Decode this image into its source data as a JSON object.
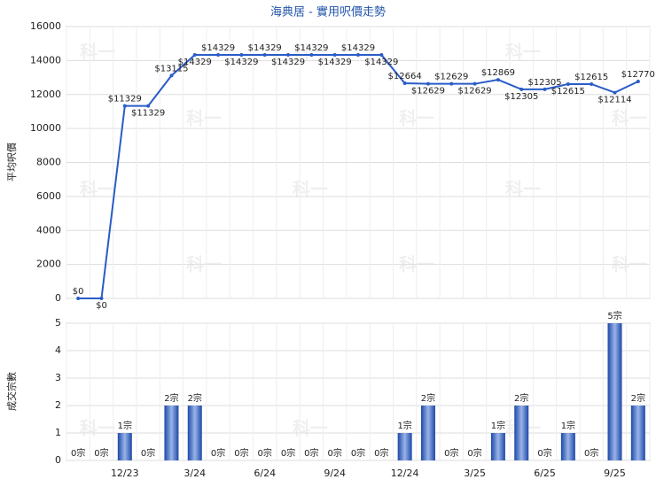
{
  "chart_data": [
    {
      "type": "line",
      "title": "海典居 - 實用呎價走勢",
      "ylabel": "平均呎價",
      "watermark": "科一",
      "color": "#2a5cc8",
      "values": [
        0,
        0,
        11329,
        11329,
        13115,
        14329,
        14329,
        14329,
        14329,
        14329,
        14329,
        14329,
        14329,
        14329,
        12664,
        12629,
        12629,
        12629,
        12869,
        12305,
        12305,
        12615,
        12615,
        12114,
        12770
      ],
      "value_labels": [
        "$0",
        "$0",
        "$11329",
        "$11329",
        "$13115",
        "$14329",
        "$14329",
        "$14329",
        "$14329",
        "$14329",
        "$14329",
        "$14329",
        "$14329",
        "$14329",
        "$12664",
        "$12629",
        "$12629",
        "$12629",
        "$12869",
        "$12305",
        "$12305",
        "$12615",
        "$12615",
        "$12114",
        "$12770"
      ],
      "ylim": [
        0,
        16000
      ],
      "yticks": [
        0,
        2000,
        4000,
        6000,
        8000,
        10000,
        12000,
        14000,
        16000
      ],
      "grid": true
    },
    {
      "type": "bar",
      "ylabel": "成交宗數",
      "color": "#2b5fc4",
      "categories": [
        null,
        null,
        "12/23",
        null,
        null,
        "3/24",
        null,
        null,
        "6/24",
        null,
        null,
        "9/24",
        null,
        null,
        "12/24",
        null,
        null,
        "3/25",
        null,
        null,
        "6/25",
        null,
        null,
        "9/25",
        null
      ],
      "values": [
        0,
        0,
        1,
        0,
        2,
        2,
        0,
        0,
        0,
        0,
        0,
        0,
        0,
        0,
        1,
        2,
        0,
        0,
        1,
        2,
        0,
        1,
        0,
        5,
        2
      ],
      "value_labels": [
        "0宗",
        "0宗",
        "1宗",
        "0宗",
        "2宗",
        "2宗",
        "0宗",
        "0宗",
        "0宗",
        "0宗",
        "0宗",
        "0宗",
        "0宗",
        "0宗",
        "1宗",
        "2宗",
        "0宗",
        "0宗",
        "1宗",
        "2宗",
        "0宗",
        "1宗",
        "0宗",
        "5宗",
        "2宗"
      ],
      "ylim": [
        0,
        5
      ],
      "yticks": [
        0,
        1,
        2,
        3,
        4,
        5
      ],
      "grid": true
    }
  ]
}
